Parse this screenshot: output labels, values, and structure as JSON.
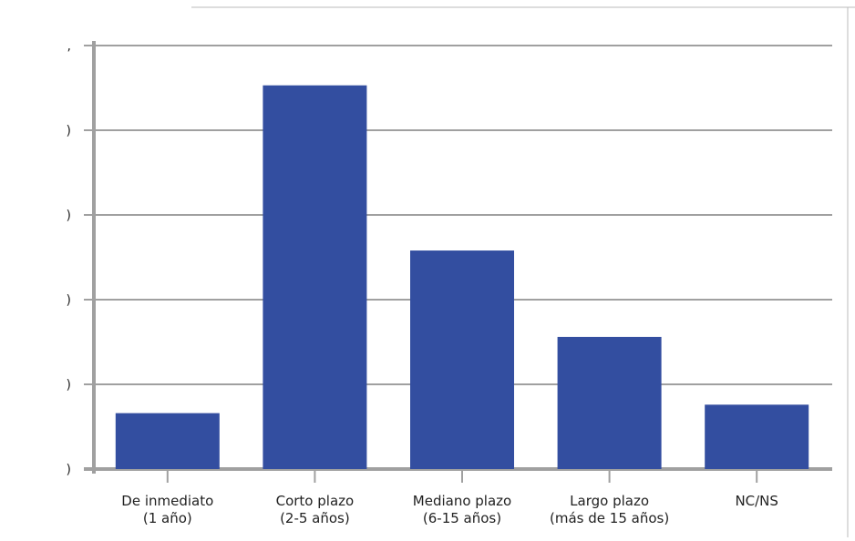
{
  "chart_data": {
    "type": "bar",
    "categories": [
      [
        "De inmediato",
        "(1 año)"
      ],
      [
        "Corto plazo",
        "(2-5 años)"
      ],
      [
        "Mediano plazo",
        "(6-15 años)"
      ],
      [
        "Largo plazo",
        "(más de 15 años)"
      ],
      [
        "NC/NS"
      ]
    ],
    "values": [
      6.6,
      45.3,
      25.8,
      15.6,
      7.6
    ],
    "color": "#334ea0",
    "ylim": [
      0,
      50
    ],
    "yticks": [
      {
        "value": 0,
        "label": ")"
      },
      {
        "value": 10,
        "label": ")"
      },
      {
        "value": 20,
        "label": ")"
      },
      {
        "value": 30,
        "label": ")"
      },
      {
        "value": 40,
        "label": ")"
      },
      {
        "value": 50,
        "label": ","
      }
    ],
    "grid": true
  }
}
